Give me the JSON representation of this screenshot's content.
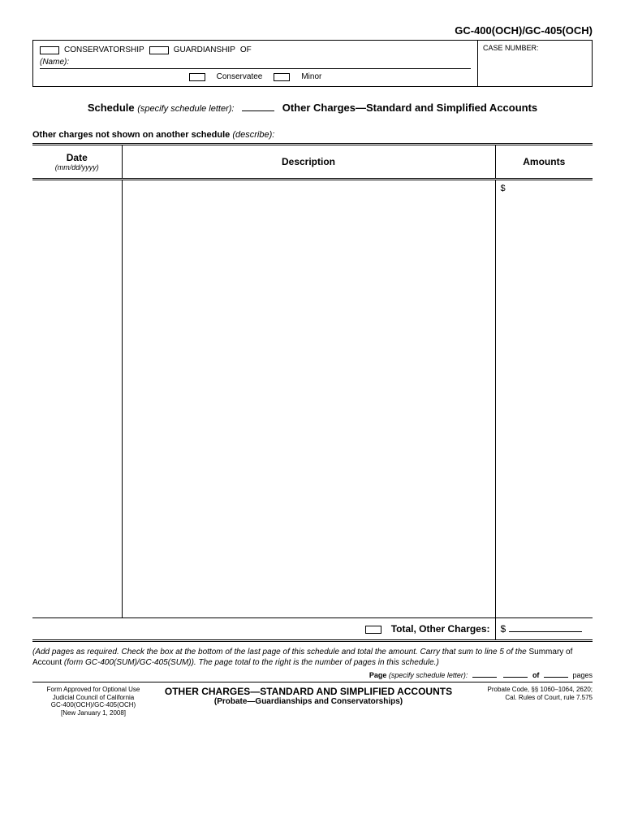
{
  "form_code": "GC-400(OCH)/GC-405(OCH)",
  "header": {
    "conservatorship_label": "CONSERVATORSHIP",
    "guardianship_label": "GUARDIANSHIP",
    "of_label": "OF",
    "name_label": "(Name):",
    "conservatee_label": "Conservatee",
    "minor_label": "Minor",
    "case_number_label": "CASE NUMBER:"
  },
  "schedule": {
    "schedule_label": "Schedule",
    "specify_label": "(specify schedule letter):",
    "title": "Other Charges—Standard and Simplified Accounts"
  },
  "describe": {
    "main": "Other charges not shown on another schedule",
    "sub": "(describe):"
  },
  "table": {
    "date_header": "Date",
    "date_sub": "(mm/dd/yyyy)",
    "desc_header": "Description",
    "amt_header": "Amounts",
    "dollar": "$",
    "total_label": "Total, Other Charges:",
    "total_dollar": "$"
  },
  "instruction": {
    "text1": "(Add pages as required.  Check the box at the bottom of the last page of this schedule and total the amount. Carry that sum to line 5 of the ",
    "text2": "Summary of Account ",
    "text3": "(form GC-400(SUM)/GC-405(SUM)). The page total to the right is the number of pages in this schedule.)"
  },
  "page_row": {
    "page_label": "Page",
    "specify": "(specify schedule letter):",
    "of_label": "of",
    "pages_label": "pages"
  },
  "footer": {
    "left1": "Form Approved for Optional Use",
    "left2": "Judicial Council of California",
    "left3": "GC-400(OCH)/GC-405(OCH)",
    "left4": "[New January 1, 2008]",
    "center_title": "OTHER CHARGES—STANDARD AND SIMPLIFIED ACCOUNTS",
    "center_sub": "(Probate—Guardianships and Conservatorships)",
    "right1": "Probate Code, §§ 1060–1064, 2620;",
    "right2": "Cal. Rules of Court, rule 7.575"
  }
}
